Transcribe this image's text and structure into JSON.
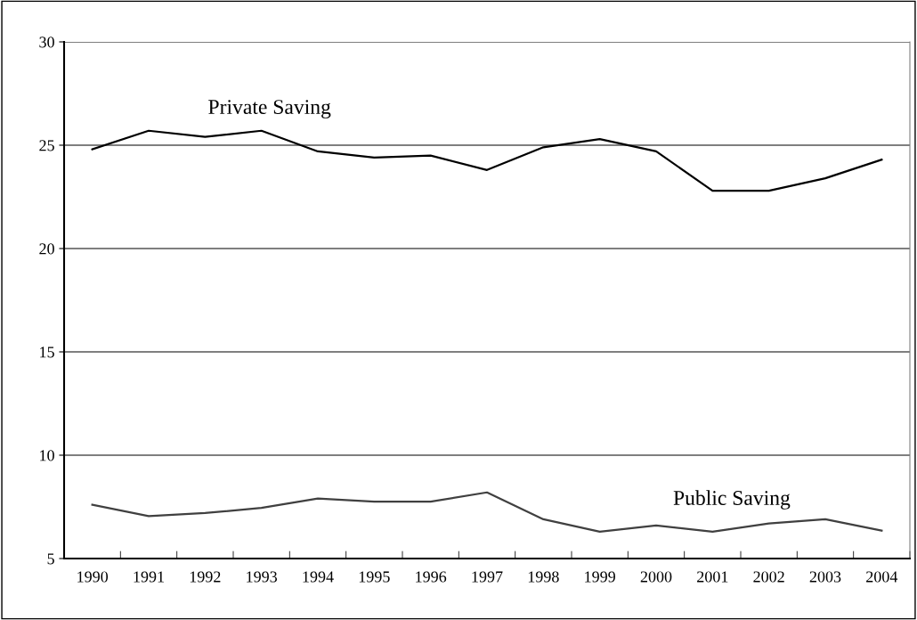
{
  "chart_data": {
    "type": "line",
    "categories": [
      "1990",
      "1991",
      "1992",
      "1993",
      "1994",
      "1995",
      "1996",
      "1997",
      "1998",
      "1999",
      "2000",
      "2001",
      "2002",
      "2003",
      "2004"
    ],
    "series": [
      {
        "name": "Private Saving",
        "color": "#000000",
        "values": [
          24.8,
          25.7,
          25.4,
          25.7,
          24.7,
          24.4,
          24.5,
          23.8,
          24.9,
          25.3,
          24.7,
          22.8,
          22.8,
          23.4,
          24.3
        ]
      },
      {
        "name": "Public Saving",
        "color": "#404040",
        "values": [
          7.6,
          7.05,
          7.2,
          7.45,
          7.9,
          7.75,
          7.75,
          8.2,
          6.9,
          6.3,
          6.6,
          6.3,
          6.7,
          6.9,
          6.35
        ]
      }
    ],
    "ylim": [
      5,
      30
    ],
    "yticks": [
      5,
      10,
      15,
      20,
      25,
      30
    ],
    "grid": "y",
    "legend": false,
    "marker": "none",
    "line_style": "solid"
  }
}
